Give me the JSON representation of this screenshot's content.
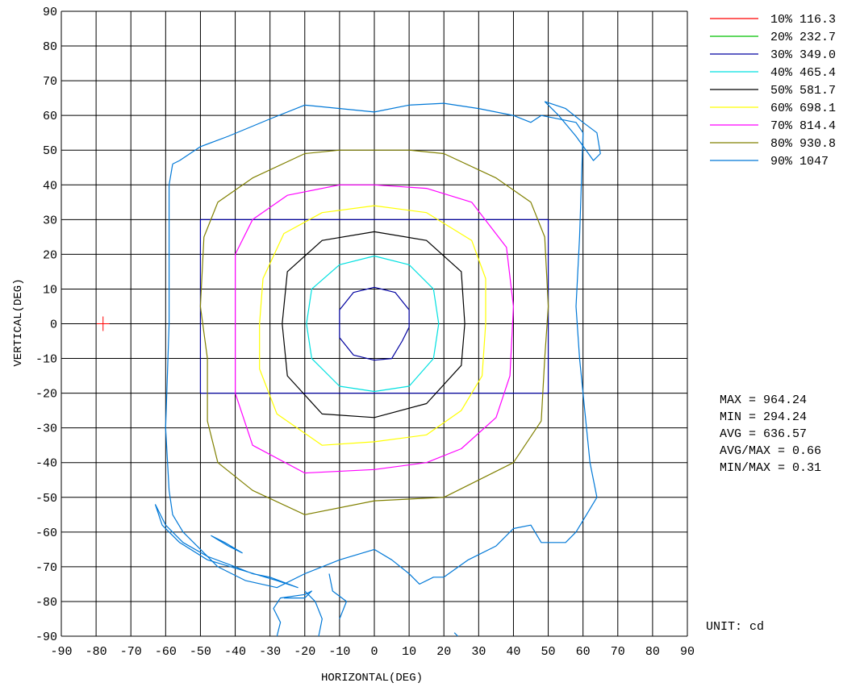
{
  "chart_data": {
    "type": "contour",
    "xlabel": "HORIZONTAL(DEG)",
    "ylabel": "VERTICAL(DEG)",
    "xlim": [
      -90,
      90
    ],
    "ylim": [
      -90,
      90
    ],
    "xticks": [
      -90,
      -80,
      -70,
      -60,
      -50,
      -40,
      -30,
      -20,
      -10,
      0,
      10,
      20,
      30,
      40,
      50,
      60,
      70,
      80,
      90
    ],
    "yticks": [
      90,
      80,
      70,
      60,
      50,
      40,
      30,
      20,
      10,
      0,
      -10,
      -20,
      -30,
      -40,
      -50,
      -60,
      -70,
      -80,
      -90
    ],
    "grid": true,
    "legend_position": "top-right",
    "legend": [
      {
        "label": "10% 116.3",
        "color": "#ff0000"
      },
      {
        "label": "20% 232.7",
        "color": "#00c000"
      },
      {
        "label": "30% 349.0",
        "color": "#0000a0"
      },
      {
        "label": "40% 465.4",
        "color": "#00e0e0"
      },
      {
        "label": "50% 581.7",
        "color": "#000000"
      },
      {
        "label": "60% 698.1",
        "color": "#ffff00"
      },
      {
        "label": "70% 814.4",
        "color": "#ff00ff"
      },
      {
        "label": "80% 930.8",
        "color": "#808000"
      },
      {
        "label": "90% 1047",
        "color": "#0078d7"
      }
    ],
    "contours": [
      {
        "level": "30%",
        "color": "#0000a0",
        "points": [
          [
            0,
            10.5
          ],
          [
            6,
            9
          ],
          [
            10,
            4
          ],
          [
            10,
            -1
          ],
          [
            8,
            -5
          ],
          [
            5,
            -10
          ],
          [
            0,
            -10.5
          ],
          [
            -6,
            -9
          ],
          [
            -10,
            -4
          ],
          [
            -10,
            4
          ],
          [
            -6,
            9
          ],
          [
            0,
            10.5
          ]
        ]
      },
      {
        "level": "40%",
        "color": "#00e0e0",
        "points": [
          [
            0,
            19.5
          ],
          [
            10,
            17
          ],
          [
            17,
            10
          ],
          [
            18.5,
            0
          ],
          [
            17,
            -10
          ],
          [
            10,
            -18
          ],
          [
            0,
            -19.5
          ],
          [
            -10,
            -18
          ],
          [
            -18,
            -10
          ],
          [
            -19.5,
            0
          ],
          [
            -18,
            10
          ],
          [
            -10,
            17
          ],
          [
            0,
            19.5
          ]
        ]
      },
      {
        "level": "50%",
        "color": "#000000",
        "points": [
          [
            0,
            26.5
          ],
          [
            15,
            24
          ],
          [
            25,
            15
          ],
          [
            26,
            0
          ],
          [
            25,
            -12
          ],
          [
            15,
            -23
          ],
          [
            0,
            -27
          ],
          [
            -15,
            -26
          ],
          [
            -25,
            -15
          ],
          [
            -26.5,
            0
          ],
          [
            -25,
            15
          ],
          [
            -15,
            24
          ],
          [
            0,
            26.5
          ]
        ]
      },
      {
        "level": "60%",
        "color": "#ffff00",
        "points": [
          [
            0,
            34
          ],
          [
            15,
            32
          ],
          [
            28,
            24
          ],
          [
            32,
            13
          ],
          [
            32,
            0
          ],
          [
            31,
            -15
          ],
          [
            25,
            -25
          ],
          [
            15,
            -32
          ],
          [
            0,
            -34
          ],
          [
            -15,
            -35
          ],
          [
            -28,
            -26
          ],
          [
            -33,
            -13
          ],
          [
            -33,
            0
          ],
          [
            -32,
            13
          ],
          [
            -26,
            26
          ],
          [
            -15,
            32
          ],
          [
            0,
            34
          ]
        ]
      },
      {
        "level": "70%",
        "color": "#ff00ff",
        "points": [
          [
            0,
            40
          ],
          [
            15,
            39
          ],
          [
            28,
            35
          ],
          [
            38,
            22
          ],
          [
            40,
            5
          ],
          [
            39,
            -15
          ],
          [
            35,
            -27
          ],
          [
            25,
            -36
          ],
          [
            15,
            -40
          ],
          [
            0,
            -42
          ],
          [
            -20,
            -43
          ],
          [
            -35,
            -35
          ],
          [
            -40,
            -20
          ],
          [
            -40,
            0
          ],
          [
            -40,
            20
          ],
          [
            -35,
            30
          ],
          [
            -25,
            37
          ],
          [
            -10,
            40
          ],
          [
            0,
            40
          ]
        ]
      },
      {
        "level": "80%",
        "color": "#808000",
        "points": [
          [
            0,
            50
          ],
          [
            10,
            50
          ],
          [
            20,
            49
          ],
          [
            35,
            42
          ],
          [
            45,
            35
          ],
          [
            49,
            25
          ],
          [
            50,
            5
          ],
          [
            49,
            -10
          ],
          [
            48,
            -28
          ],
          [
            40,
            -40
          ],
          [
            30,
            -45
          ],
          [
            20,
            -50
          ],
          [
            0,
            -51
          ],
          [
            -20,
            -55
          ],
          [
            -35,
            -48
          ],
          [
            -45,
            -40
          ],
          [
            -48,
            -28
          ],
          [
            -48,
            -10
          ],
          [
            -50,
            5
          ],
          [
            -49,
            25
          ],
          [
            -45,
            35
          ],
          [
            -35,
            42
          ],
          [
            -20,
            49
          ],
          [
            -10,
            50
          ],
          [
            0,
            50
          ]
        ]
      },
      {
        "level": "90%",
        "color": "#0078d7",
        "points": [
          [
            -58,
            46
          ],
          [
            -56,
            47
          ],
          [
            -50,
            51
          ],
          [
            -42,
            54
          ],
          [
            -30,
            59
          ],
          [
            -20,
            63
          ],
          [
            0,
            61
          ],
          [
            10,
            63
          ],
          [
            20,
            63.5
          ],
          [
            30,
            62
          ],
          [
            40,
            60
          ],
          [
            45,
            58
          ],
          [
            48,
            60
          ],
          [
            58,
            58
          ],
          [
            60,
            55
          ],
          [
            59,
            25
          ],
          [
            58,
            5
          ],
          [
            59,
            -10
          ],
          [
            61,
            -30
          ],
          [
            62,
            -40
          ],
          [
            64,
            -50
          ],
          [
            61,
            -55
          ],
          [
            58,
            -60
          ],
          [
            55,
            -63
          ],
          [
            48,
            -63
          ],
          [
            45,
            -58
          ],
          [
            40,
            -59
          ],
          [
            35,
            -64
          ],
          [
            27,
            -68
          ],
          [
            20,
            -73
          ],
          [
            17,
            -73
          ],
          [
            13,
            -75
          ],
          [
            10,
            -72
          ],
          [
            5,
            -68
          ],
          [
            0,
            -65
          ],
          [
            -10,
            -68
          ],
          [
            -20,
            -72
          ],
          [
            -28,
            -76
          ],
          [
            -37,
            -74
          ],
          [
            -45,
            -70
          ],
          [
            -55,
            -60
          ],
          [
            -58,
            -55
          ],
          [
            -59,
            -48
          ],
          [
            -60,
            -30
          ],
          [
            -59,
            0
          ],
          [
            -59,
            20
          ],
          [
            -59,
            40
          ],
          [
            -58,
            46
          ]
        ]
      },
      {
        "level": "90%",
        "color": "#0078d7",
        "points": [
          [
            49,
            64
          ],
          [
            55,
            62
          ],
          [
            60,
            58
          ],
          [
            64,
            55
          ],
          [
            65,
            49
          ],
          [
            63,
            47
          ],
          [
            58,
            54
          ],
          [
            53,
            60
          ],
          [
            49,
            64
          ]
        ]
      },
      {
        "level": "90%",
        "color": "#0078d7",
        "points": [
          [
            -63,
            -52
          ],
          [
            -60,
            -58
          ],
          [
            -55,
            -63
          ],
          [
            -48,
            -67
          ],
          [
            -40,
            -70
          ],
          [
            -35,
            -72
          ],
          [
            -30,
            -73
          ],
          [
            -22,
            -76
          ],
          [
            -28,
            -74
          ],
          [
            -38,
            -71
          ],
          [
            -48,
            -68
          ],
          [
            -56,
            -63
          ],
          [
            -61,
            -58
          ],
          [
            -63,
            -52
          ]
        ]
      },
      {
        "level": "90%",
        "color": "#0078d7",
        "points": [
          [
            -47,
            -61
          ],
          [
            -42,
            -64
          ],
          [
            -38,
            -66
          ],
          [
            -43,
            -63
          ],
          [
            -47,
            -61
          ]
        ]
      },
      {
        "level": "90%",
        "color": "#0078d7",
        "points": [
          [
            -28,
            -90
          ],
          [
            -27,
            -86
          ],
          [
            -29,
            -82
          ],
          [
            -27,
            -79
          ],
          [
            -20,
            -78
          ],
          [
            -18,
            -77
          ],
          [
            -20,
            -79
          ],
          [
            -26,
            -79
          ]
        ]
      },
      {
        "level": "90%",
        "color": "#0078d7",
        "points": [
          [
            -20,
            -77
          ],
          [
            -17,
            -80
          ],
          [
            -15,
            -85
          ],
          [
            -16,
            -90
          ]
        ]
      },
      {
        "level": "90%",
        "color": "#0078d7",
        "points": [
          [
            -10,
            -85
          ],
          [
            -8,
            -80
          ],
          [
            -12,
            -77
          ],
          [
            -13,
            -72
          ]
        ]
      },
      {
        "level": "90%",
        "color": "#0078d7",
        "points": [
          [
            23,
            -89
          ],
          [
            24,
            -90
          ]
        ]
      }
    ],
    "rectangle": {
      "x": [
        -50,
        50
      ],
      "y": [
        -20,
        30
      ],
      "color": "#0000a0"
    },
    "marker": {
      "x": -78,
      "y": 0,
      "color": "#ff0000"
    }
  },
  "stats": [
    "MAX = 964.24",
    "MIN = 294.24",
    "AVG = 636.57",
    "AVG/MAX = 0.66",
    "MIN/MAX = 0.31"
  ],
  "unit_text": "UNIT: cd"
}
